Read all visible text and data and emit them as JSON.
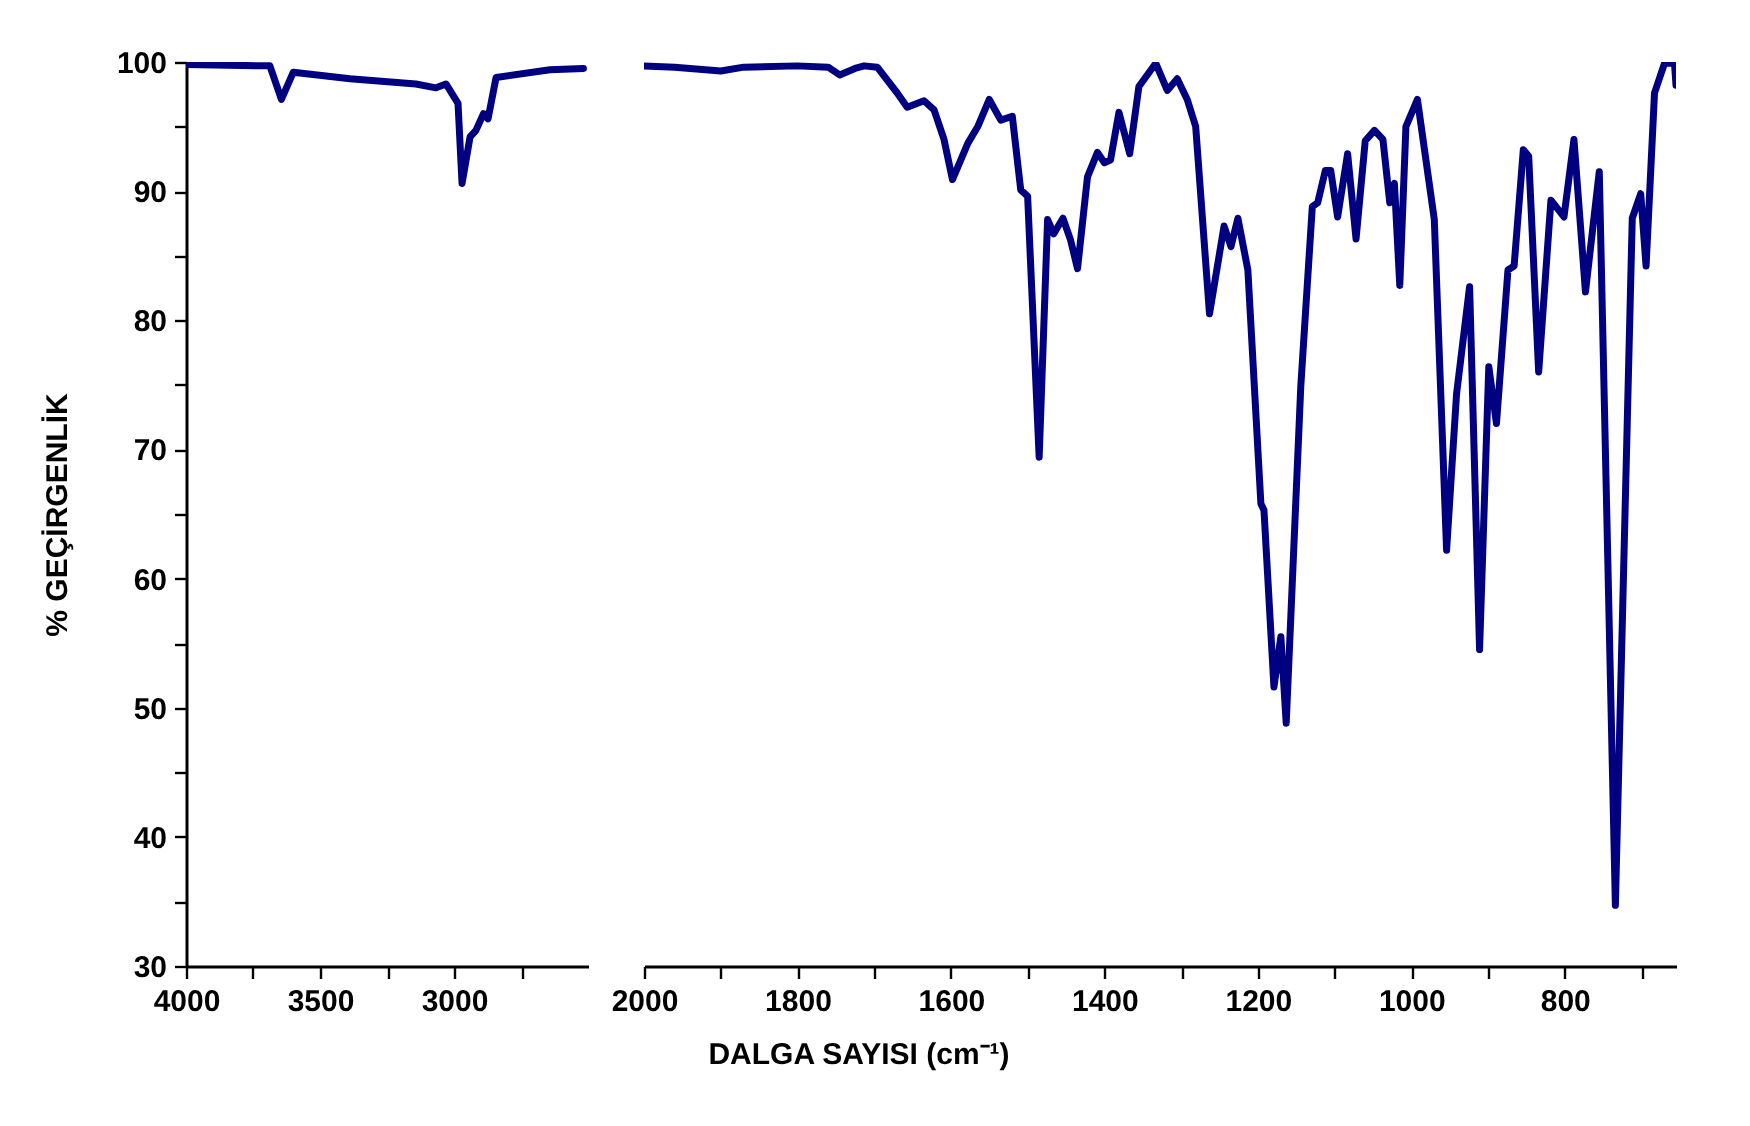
{
  "chart_data": [
    {
      "type": "line",
      "xlabel": "DALGA SAYISI (cm⁻¹)",
      "ylabel": "% GEÇİRGENLİK",
      "xlim": [
        4000,
        2500
      ],
      "ylim": [
        30,
        100
      ],
      "xticks": [
        4000,
        {
          "value": 3750,
          "label": null
        },
        3500,
        {
          "value": 3250,
          "label": null
        },
        3000,
        {
          "value": 2750,
          "label": null
        }
      ],
      "yticks": [
        30,
        {
          "value": 35,
          "label": null
        },
        40,
        {
          "value": 45,
          "label": null
        },
        50,
        {
          "value": 55,
          "label": null
        },
        60,
        {
          "value": 65,
          "label": null
        },
        70,
        {
          "value": 75,
          "label": null
        },
        80,
        {
          "value": 85,
          "label": null
        },
        90,
        {
          "value": 95,
          "label": null
        },
        100
      ],
      "series": [
        {
          "color": "#000080",
          "x": [
            4000,
            3687,
            3644,
            3600,
            3388,
            3142,
            3067,
            3030,
            2985,
            2970,
            2940,
            2918,
            2890,
            2873,
            2843,
            2642,
            2517
          ],
          "values": [
            99.8,
            99.7,
            97.1,
            99.2,
            98.7,
            98.3,
            98.0,
            98.3,
            96.8,
            90.6,
            94.2,
            94.7,
            96.0,
            95.6,
            98.8,
            99.4,
            99.5
          ]
        }
      ]
    },
    {
      "type": "line",
      "xlim": [
        2000,
        655
      ],
      "ylim": [
        30,
        100
      ],
      "tick_labels": "x",
      "xticks": [
        2000,
        {
          "value": 1900,
          "label": null
        },
        1800,
        {
          "value": 1700,
          "label": null
        },
        1600,
        {
          "value": 1500,
          "label": null
        },
        1400,
        {
          "value": 1300,
          "label": null
        },
        1200,
        {
          "value": 1100,
          "label": null
        },
        1000,
        {
          "value": 900,
          "label": null
        },
        800,
        {
          "value": 700,
          "label": null
        }
      ],
      "series": [
        {
          "color": "#000080",
          "x": [
            2000,
            1960,
            1900,
            1870,
            1800,
            1760,
            1745,
            1725,
            1713,
            1696,
            1670,
            1657,
            1635,
            1622,
            1609,
            1598,
            1578,
            1565,
            1550,
            1535,
            1520,
            1509,
            1500,
            1485,
            1474,
            1466,
            1454,
            1444,
            1435,
            1422,
            1409,
            1400,
            1392,
            1381,
            1367,
            1355,
            1333,
            1318,
            1305,
            1292,
            1281,
            1263,
            1244,
            1235,
            1226,
            1213,
            1196,
            1192,
            1179,
            1170,
            1163,
            1144,
            1129,
            1122,
            1112,
            1105,
            1096,
            1083,
            1072,
            1060,
            1048,
            1037,
            1028,
            1022,
            1015,
            1007,
            992,
            970,
            954,
            941,
            924,
            911,
            899,
            889,
            874,
            866,
            854,
            847,
            834,
            818,
            801,
            788,
            773,
            755,
            734,
            712,
            701,
            694,
            683,
            670,
            657,
            655
          ],
          "values": [
            99.7,
            99.6,
            99.3,
            99.6,
            99.7,
            99.6,
            99.0,
            99.5,
            99.7,
            99.6,
            97.6,
            96.5,
            97.0,
            96.3,
            94.0,
            90.9,
            93.7,
            95.0,
            97.1,
            95.5,
            95.8,
            90.1,
            89.6,
            69.4,
            87.8,
            86.7,
            87.9,
            86.2,
            84.0,
            91.1,
            93.0,
            92.2,
            92.4,
            96.1,
            92.9,
            98.1,
            99.9,
            97.8,
            98.7,
            97.1,
            95.0,
            80.5,
            87.3,
            85.7,
            87.9,
            83.9,
            65.8,
            65.3,
            51.6,
            55.5,
            48.8,
            74.9,
            88.8,
            89.1,
            91.6,
            91.6,
            88.0,
            92.9,
            86.3,
            93.9,
            94.7,
            94.0,
            89.1,
            90.6,
            82.7,
            95.0,
            97.1,
            87.8,
            62.2,
            74.3,
            82.6,
            54.5,
            76.4,
            72.0,
            83.9,
            84.2,
            93.2,
            92.7,
            76.0,
            89.3,
            88.0,
            94.0,
            82.2,
            91.5,
            34.7,
            87.9,
            89.8,
            84.2,
            97.6,
            99.9,
            99.9,
            98.2
          ]
        }
      ]
    }
  ]
}
